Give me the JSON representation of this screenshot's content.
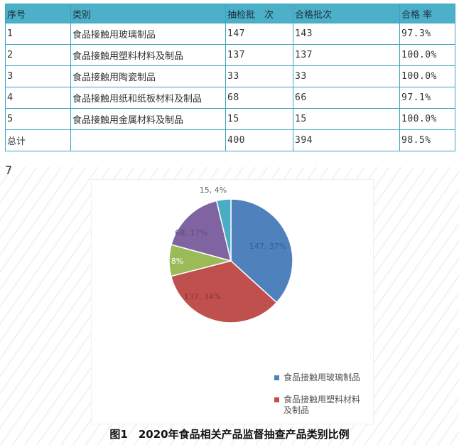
{
  "table": {
    "headers": [
      "序号",
      "类别",
      "抽检批　次",
      "合格批次",
      "合格 率"
    ],
    "rows": [
      [
        "1",
        "食品接触用玻璃制品",
        "147",
        "143",
        "97.3%"
      ],
      [
        "2",
        "食品接触用塑料材料及制品",
        "137",
        "137",
        "100.0%"
      ],
      [
        "3",
        "食品接触用陶瓷制品",
        "33",
        "33",
        "100.0%"
      ],
      [
        "4",
        "食品接触用纸和纸板材料及制品",
        "68",
        "66",
        "97.1%"
      ],
      [
        "5",
        "食品接触用金属材料及制品",
        "15",
        "15",
        "100.0%"
      ],
      [
        "总计",
        "",
        "400",
        "394",
        "98.5%"
      ]
    ],
    "colors": {
      "header_bg": "#4bb0c8",
      "border": "#3aa4bf"
    }
  },
  "stray_text": "7",
  "chart_data": {
    "type": "pie",
    "title": "",
    "slices": [
      {
        "name": "食品接触用玻璃制品",
        "value": 147,
        "label": "147, 37%",
        "color": "#4f81bd"
      },
      {
        "name": "食品接触用塑料材料及制品",
        "value": 137,
        "label": "137, 34%",
        "color": "#c0504d"
      },
      {
        "name": "食品接触用陶瓷制品",
        "value": 33,
        "label": "33, 8%",
        "color": "#9bbb59"
      },
      {
        "name": "食品接触用纸和纸板材料及制品",
        "value": 68,
        "label": "68, 17%",
        "color": "#8064a2"
      },
      {
        "name": "食品接触用金属材料及制品",
        "value": 15,
        "label": "15, 4%",
        "color": "#4bacc6"
      }
    ],
    "legend": {
      "placement": "bottom",
      "items": [
        {
          "name": "食品接触用玻璃制品",
          "color": "#4f81bd"
        },
        {
          "name": "食品接触用塑料材料及制品",
          "color": "#c0504d"
        }
      ]
    }
  },
  "caption": "图1　2020年食品相关产品监督抽查产品类别比例"
}
